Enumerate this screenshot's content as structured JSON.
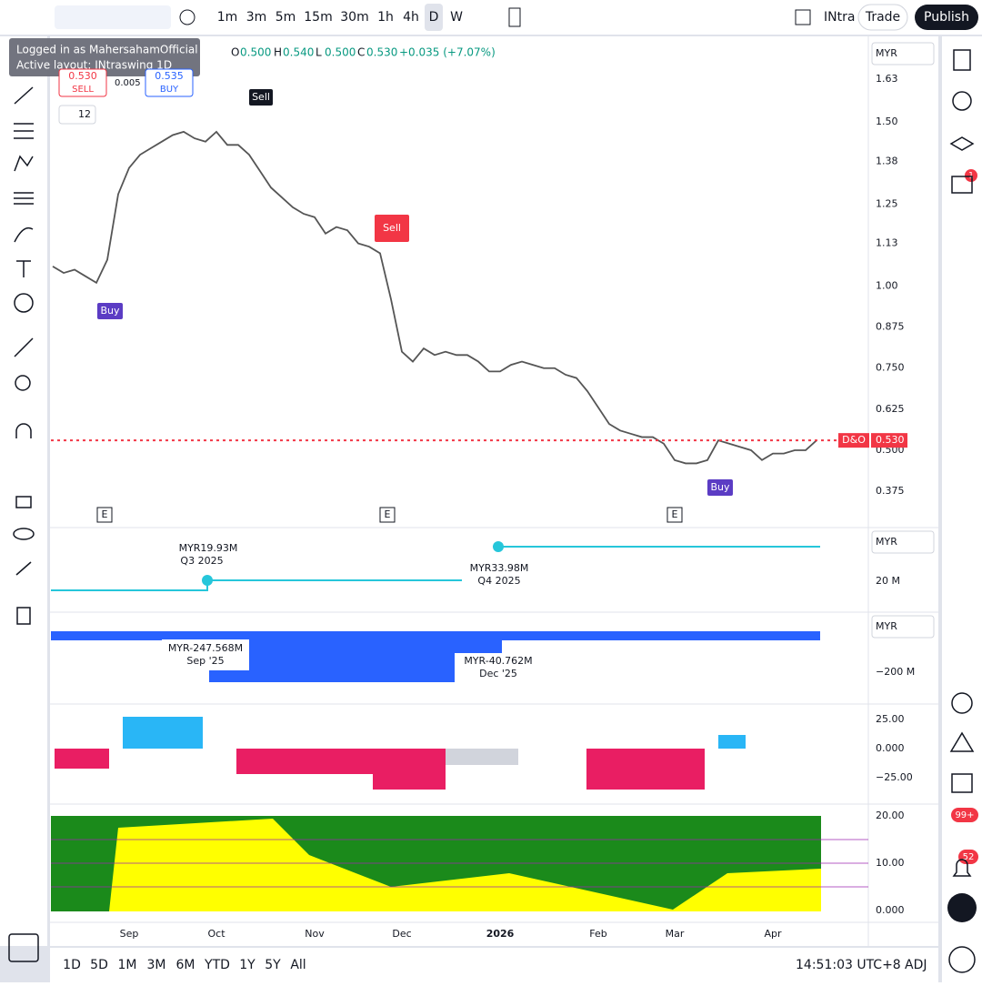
{
  "toolbar": {
    "intervals": [
      "1m",
      "3m",
      "5m",
      "15m",
      "30m",
      "1h",
      "4h",
      "D",
      "W"
    ],
    "layout_name": "INtra",
    "trade": "Trade",
    "publish": "Publish"
  },
  "tooltip": {
    "user": "Logged in as MahersahamOfficial",
    "layout": "Active layout: INtraswing 1D"
  },
  "legend": {
    "open_key": "O",
    "open": "0.500",
    "high_key": "H",
    "high": "0.540",
    "low_key": "L",
    "low": "0.500",
    "close_key": "C",
    "close": "0.530",
    "change": "+0.035 (+7.07%)"
  },
  "order": {
    "sell_price": "0.530",
    "sell": "SELL",
    "spread": "0.005",
    "buy_price": "0.535",
    "buy": "BUY"
  },
  "indicator_count": "12",
  "signals": [
    "Sell",
    "Sell",
    "Buy",
    "Buy"
  ],
  "earnings_mark": "E",
  "price_label": {
    "symbol": "D&O",
    "price": "0.530"
  },
  "currency": "MYR",
  "chart_data": {
    "type": "line",
    "categories": [
      null,
      null,
      null,
      null,
      null,
      null,
      null,
      "Sep",
      null,
      null,
      null,
      null,
      null,
      null,
      null,
      "Oct",
      null,
      null,
      null,
      null,
      null,
      null,
      null,
      null,
      "Nov",
      null,
      null,
      null,
      null,
      null,
      null,
      null,
      "Dec",
      null,
      null,
      null,
      null,
      null,
      null,
      null,
      null,
      "2026",
      null,
      null,
      null,
      null,
      null,
      null,
      null,
      null,
      "Feb",
      null,
      null,
      null,
      null,
      null,
      null,
      "Mar",
      null,
      null,
      null,
      null,
      null,
      null,
      null,
      null,
      "Apr",
      null,
      null,
      null,
      null
    ],
    "series": [
      {
        "name": "D&O",
        "color": "#555555",
        "values": [
          1.06,
          1.04,
          1.05,
          1.03,
          1.01,
          1.08,
          1.28,
          1.36,
          1.4,
          1.42,
          1.44,
          1.46,
          1.47,
          1.45,
          1.44,
          1.47,
          1.43,
          1.43,
          1.4,
          1.35,
          1.3,
          1.27,
          1.24,
          1.22,
          1.21,
          1.16,
          1.18,
          1.17,
          1.13,
          1.12,
          1.1,
          0.96,
          0.8,
          0.77,
          0.81,
          0.79,
          0.8,
          0.79,
          0.79,
          0.77,
          0.74,
          0.74,
          0.76,
          0.77,
          0.76,
          0.75,
          0.75,
          0.73,
          0.72,
          0.68,
          0.63,
          0.58,
          0.56,
          0.55,
          0.54,
          0.54,
          0.52,
          0.47,
          0.46,
          0.46,
          0.47,
          0.53,
          0.52,
          0.51,
          0.5,
          0.47,
          0.49,
          0.49,
          0.5,
          0.5,
          0.53
        ]
      }
    ],
    "ylim": [
      0.27,
      1.755
    ],
    "yticks": [
      1.63,
      {
        "value": 1.5,
        "label": "1.50"
      },
      1.38,
      1.25,
      1.13,
      {
        "value": 1,
        "label": "1.00"
      },
      0.875,
      {
        "value": 0.75,
        "label": "0.750"
      },
      0.625,
      {
        "value": 0.5,
        "label": "0.500"
      },
      0.375
    ],
    "grid": false
  },
  "pane2": {
    "labels": [
      {
        "value": "MYR19.93M",
        "period": "Q3 2025"
      },
      {
        "value": "MYR33.98M",
        "period": "Q4 2025"
      }
    ],
    "axis": "20 M"
  },
  "pane3": {
    "labels": [
      {
        "value": "MYR-247.568M",
        "period": "Sep '25"
      },
      {
        "value": "MYR-40.762M",
        "period": "Dec '25"
      }
    ],
    "axis": "−200 M"
  },
  "pane4": {
    "axis": [
      "25.00",
      "0.000",
      "−25.00"
    ]
  },
  "pane5": {
    "axis": [
      "20.00",
      "10.00",
      "0.000"
    ]
  },
  "ranges": [
    "1D",
    "5D",
    "1M",
    "3M",
    "6M",
    "YTD",
    "1Y",
    "5Y",
    "All"
  ],
  "clock": "14:51:03 UTC+8",
  "adj": "ADJ",
  "badges": {
    "ideas": "1",
    "notifications": "99+",
    "alerts": "52"
  }
}
